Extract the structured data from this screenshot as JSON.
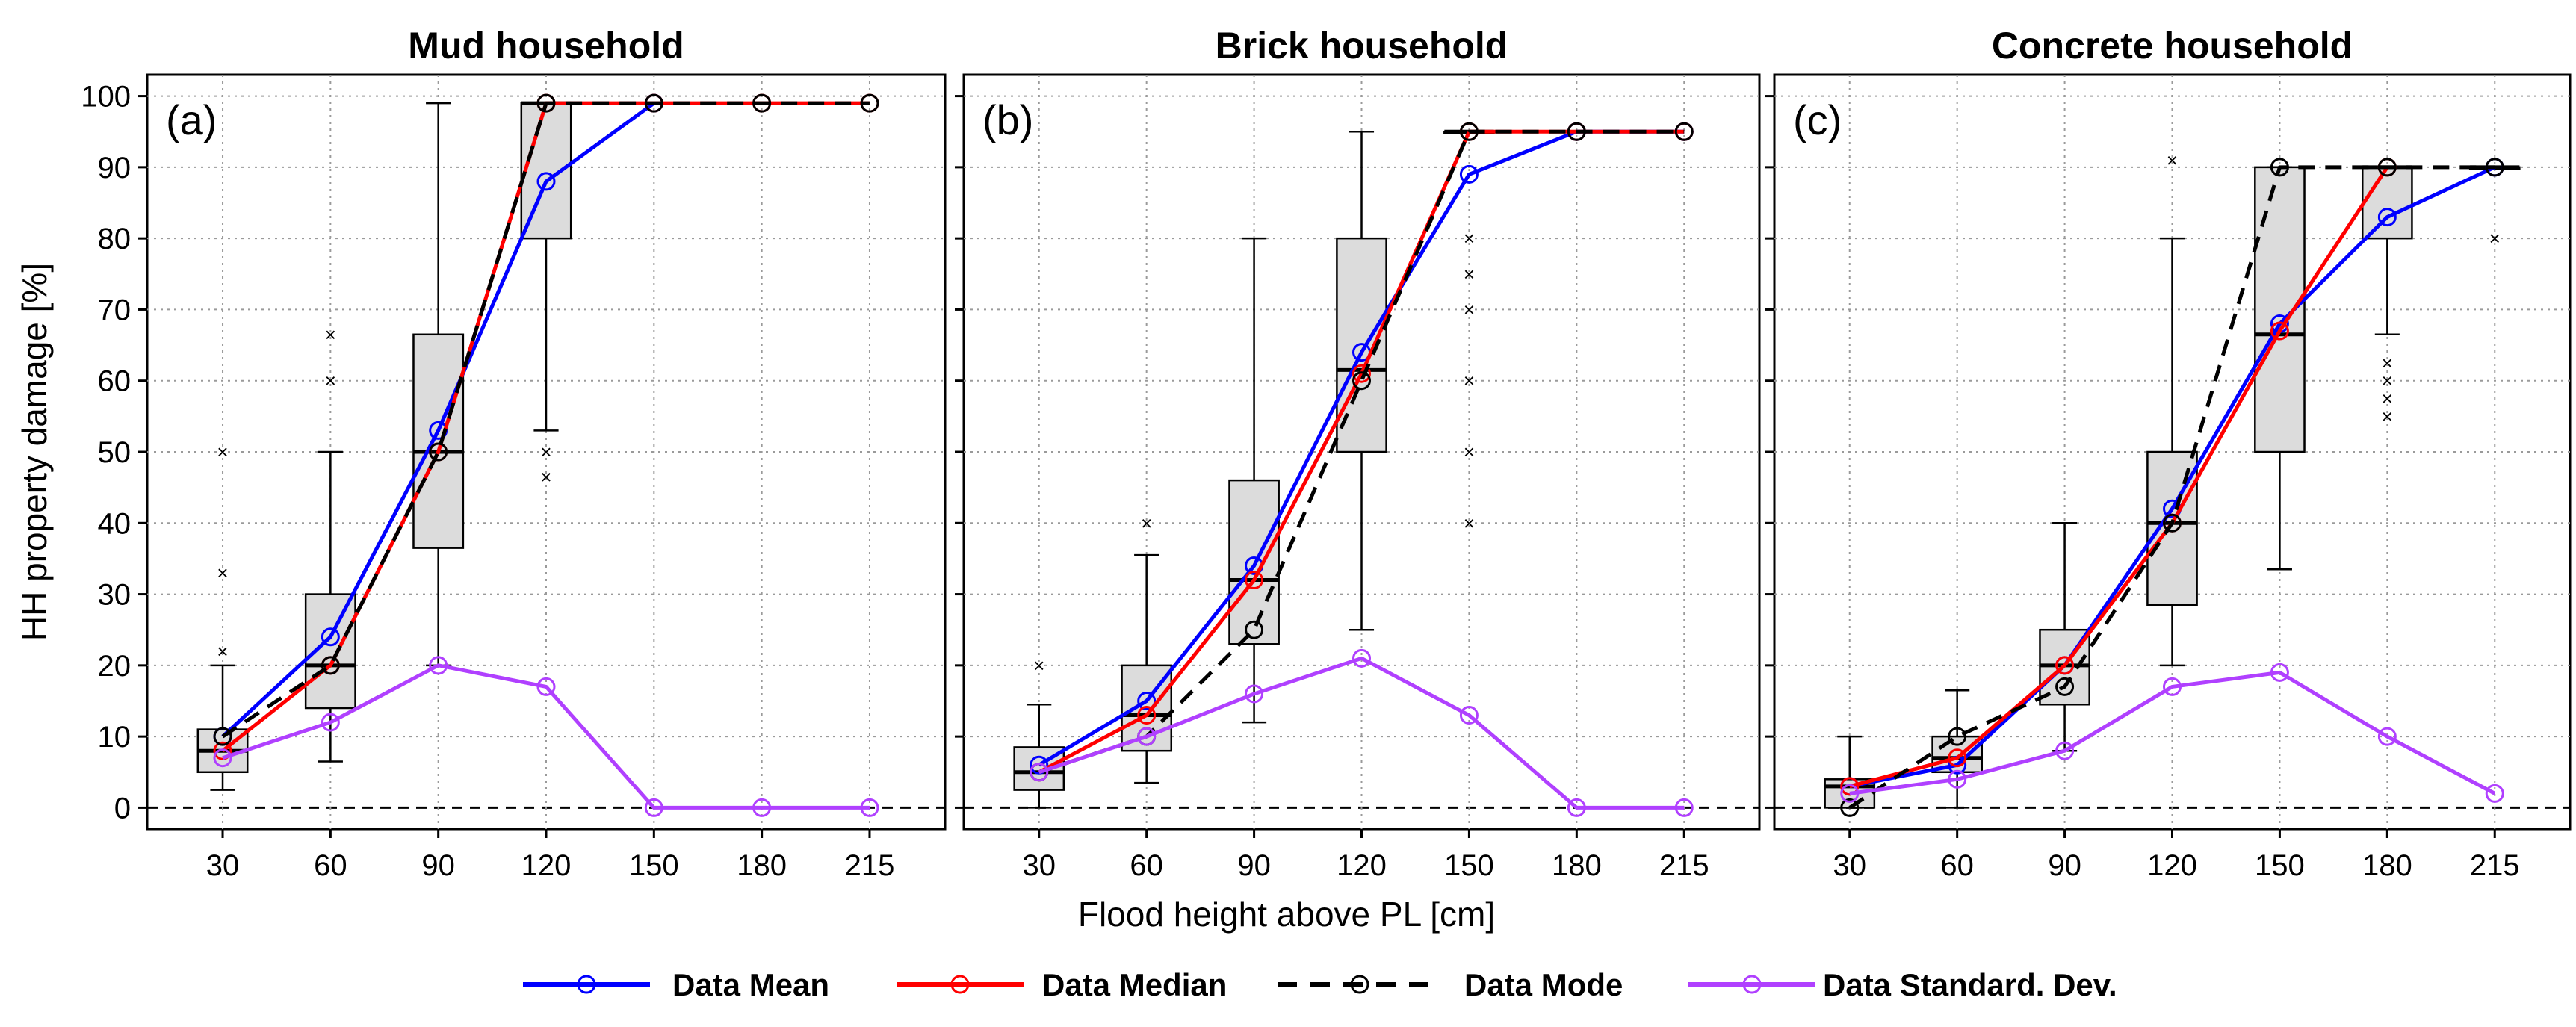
{
  "chart_data": {
    "type": "line",
    "ylabel": "HH property damage [%]",
    "xlabel": "Flood height above PL [cm]",
    "x": [
      30,
      60,
      90,
      120,
      150,
      180,
      215
    ],
    "y_ticks": [
      0,
      10,
      20,
      30,
      40,
      50,
      60,
      70,
      80,
      90,
      100
    ],
    "ylim": [
      -3,
      103
    ],
    "grid": true,
    "legend_position": "bottom",
    "series_styles": {
      "Data Mean": {
        "color": "#0000ff",
        "dash": "solid"
      },
      "Data Median": {
        "color": "#ff0000",
        "dash": "solid"
      },
      "Data Mode": {
        "color": "#000000",
        "dash": "dashed"
      },
      "Data Standard. Dev.": {
        "color": "#b040ff",
        "dash": "solid"
      }
    },
    "legend": [
      "Data Mean",
      "Data Median",
      "Data Mode",
      "Data Standard. Dev."
    ],
    "panels": [
      {
        "title": "Mud household",
        "label": "(a)",
        "series": [
          {
            "name": "Data Mean",
            "x": [
              30,
              60,
              90,
              120,
              150
            ],
            "values": [
              10,
              24,
              53,
              88,
              99
            ]
          },
          {
            "name": "Data Median",
            "x": [
              30,
              60,
              90,
              120,
              150,
              180,
              215
            ],
            "values": [
              8,
              20,
              50,
              99,
              99,
              99,
              99
            ]
          },
          {
            "name": "Data Mode",
            "x": [
              30,
              60,
              90,
              120,
              150,
              180,
              215
            ],
            "values": [
              10,
              20,
              50,
              99,
              99,
              99,
              99
            ]
          },
          {
            "name": "Data Standard. Dev.",
            "x": [
              30,
              60,
              90,
              120,
              150,
              180,
              215
            ],
            "values": [
              7,
              12,
              20,
              17,
              0,
              0,
              0
            ]
          }
        ],
        "boxes": [
          {
            "x": 30,
            "q1": 5,
            "median": 8,
            "q3": 11,
            "whisker_low": 2.5,
            "whisker_high": 20
          },
          {
            "x": 60,
            "q1": 14,
            "median": 20,
            "q3": 30,
            "whisker_low": 6.5,
            "whisker_high": 50
          },
          {
            "x": 90,
            "q1": 36.5,
            "median": 50,
            "q3": 66.5,
            "whisker_low": 20,
            "whisker_high": 99
          },
          {
            "x": 120,
            "q1": 80,
            "median": 99,
            "q3": 99,
            "whisker_low": 53,
            "whisker_high": 99
          }
        ],
        "outliers": [
          {
            "x": 30,
            "values": [
              22,
              33,
              50
            ]
          },
          {
            "x": 60,
            "values": [
              60,
              66.5
            ]
          },
          {
            "x": 120,
            "values": [
              46.5,
              50
            ]
          }
        ]
      },
      {
        "title": "Brick household",
        "label": "(b)",
        "series": [
          {
            "name": "Data Mean",
            "x": [
              30,
              60,
              90,
              120,
              150,
              180,
              215
            ],
            "values": [
              6,
              15,
              34,
              64,
              89,
              95,
              95
            ]
          },
          {
            "name": "Data Median",
            "x": [
              30,
              60,
              90,
              120,
              150,
              180,
              215
            ],
            "values": [
              5,
              13,
              32,
              61,
              95,
              95,
              95
            ]
          },
          {
            "name": "Data Mode",
            "x": [
              30,
              60,
              90,
              120,
              150,
              180,
              215
            ],
            "values": [
              5,
              10,
              25,
              60,
              95,
              95,
              95
            ]
          },
          {
            "name": "Data Standard. Dev.",
            "x": [
              30,
              60,
              90,
              120,
              150,
              180,
              215
            ],
            "values": [
              5,
              10,
              16,
              21,
              13,
              0,
              0
            ]
          }
        ],
        "boxes": [
          {
            "x": 30,
            "q1": 2.5,
            "median": 5,
            "q3": 8.5,
            "whisker_low": 0,
            "whisker_high": 14.5
          },
          {
            "x": 60,
            "q1": 8,
            "median": 13,
            "q3": 20,
            "whisker_low": 3.5,
            "whisker_high": 35.5
          },
          {
            "x": 90,
            "q1": 23,
            "median": 32,
            "q3": 46,
            "whisker_low": 12,
            "whisker_high": 80
          },
          {
            "x": 120,
            "q1": 50,
            "median": 61.5,
            "q3": 80,
            "whisker_low": 25,
            "whisker_high": 95
          },
          {
            "x": 150,
            "q1": 95,
            "median": 95,
            "q3": 95,
            "whisker_low": 95,
            "whisker_high": 95
          }
        ],
        "outliers": [
          {
            "x": 30,
            "values": [
              20
            ]
          },
          {
            "x": 60,
            "values": [
              40
            ]
          },
          {
            "x": 150,
            "values": [
              40,
              50,
              60,
              70,
              75,
              80
            ]
          }
        ]
      },
      {
        "title": "Concrete household",
        "label": "(c)",
        "series": [
          {
            "name": "Data Mean",
            "x": [
              30,
              60,
              90,
              120,
              150,
              180,
              215
            ],
            "values": [
              3,
              6,
              20,
              42,
              68,
              83,
              90
            ]
          },
          {
            "name": "Data Median",
            "x": [
              30,
              60,
              90,
              120,
              150,
              180
            ],
            "values": [
              3,
              7,
              20,
              40,
              67,
              90
            ]
          },
          {
            "name": "Data Mode",
            "x": [
              30,
              60,
              90,
              120,
              150,
              180,
              215
            ],
            "values": [
              0,
              10,
              17,
              40,
              90,
              90,
              90
            ]
          },
          {
            "name": "Data Standard. Dev.",
            "x": [
              30,
              60,
              90,
              120,
              150,
              180,
              215
            ],
            "values": [
              2,
              4,
              8,
              17,
              19,
              10,
              2
            ]
          }
        ],
        "boxes": [
          {
            "x": 30,
            "q1": 0,
            "median": 3,
            "q3": 4,
            "whisker_low": 0,
            "whisker_high": 10
          },
          {
            "x": 60,
            "q1": 5,
            "median": 7,
            "q3": 10,
            "whisker_low": 0,
            "whisker_high": 16.5
          },
          {
            "x": 90,
            "q1": 14.5,
            "median": 20,
            "q3": 25,
            "whisker_low": 8,
            "whisker_high": 40
          },
          {
            "x": 120,
            "q1": 28.5,
            "median": 40,
            "q3": 50,
            "whisker_low": 20,
            "whisker_high": 80
          },
          {
            "x": 150,
            "q1": 50,
            "median": 66.5,
            "q3": 90,
            "whisker_low": 33.5,
            "whisker_high": 90
          },
          {
            "x": 180,
            "q1": 80,
            "median": 90,
            "q3": 90,
            "whisker_low": 66.5,
            "whisker_high": 90
          },
          {
            "x": 215,
            "q1": 90,
            "median": 90,
            "q3": 90,
            "whisker_low": 90,
            "whisker_high": 90
          }
        ],
        "outliers": [
          {
            "x": 120,
            "values": [
              91
            ]
          },
          {
            "x": 180,
            "values": [
              55,
              57.5,
              60,
              62.5
            ]
          },
          {
            "x": 215,
            "values": [
              80
            ]
          }
        ]
      }
    ]
  }
}
